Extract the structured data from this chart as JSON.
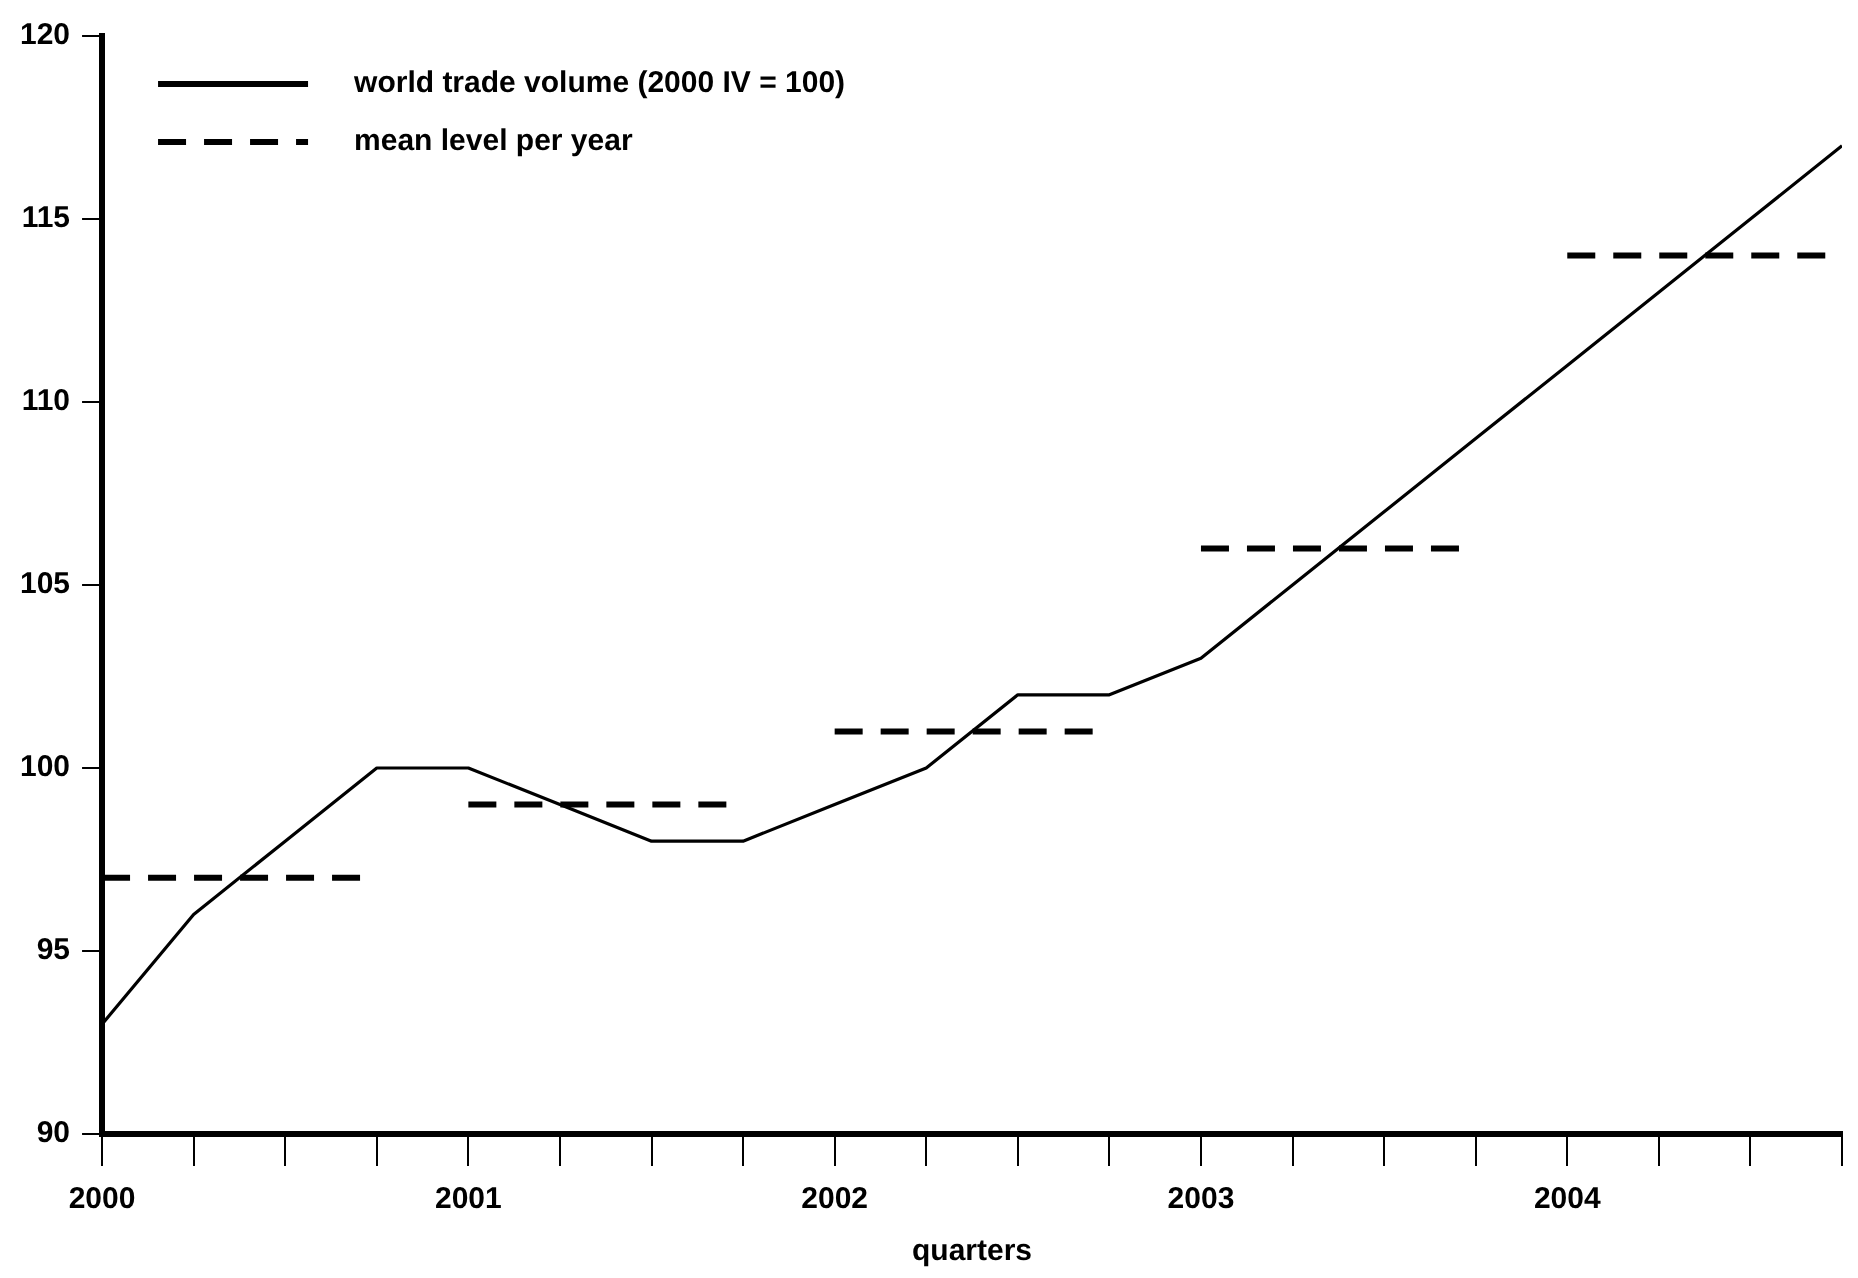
{
  "chart_data": {
    "type": "line",
    "xlabel": "quarters",
    "x": [
      2000,
      2000.25,
      2000.5,
      2000.75,
      2001,
      2001.25,
      2001.5,
      2001.75,
      2002,
      2002.25,
      2002.5,
      2002.75,
      2003,
      2003.25,
      2003.5,
      2003.75,
      2004,
      2004.25,
      2004.5,
      2004.75
    ],
    "series": [
      {
        "name": "world trade volume (2000 IV = 100)",
        "color": "#000000",
        "line_style": "solid",
        "values": [
          93,
          96,
          98,
          100,
          100,
          99,
          98,
          98,
          99,
          100,
          102,
          102,
          103,
          105,
          107,
          109,
          111,
          113,
          115,
          117
        ]
      },
      {
        "name": "mean level per year",
        "color": "#000000",
        "line_style": "dashed",
        "x": [
          2000,
          2000.75,
          2000.875,
          2001,
          2001.75,
          2001.875,
          2002,
          2002.75,
          2002.875,
          2003,
          2003.75,
          2003.875,
          2004,
          2004.75
        ],
        "values": [
          97,
          97,
          null,
          99,
          99,
          null,
          101,
          101,
          null,
          106,
          106,
          null,
          114,
          114
        ]
      }
    ],
    "xlim": [
      2000,
      2004.75
    ],
    "xticks": [
      2000,
      {
        "value": 2000.25,
        "label": null
      },
      {
        "value": 2000.5,
        "label": null
      },
      {
        "value": 2000.75,
        "label": null
      },
      2001,
      {
        "value": 2001.25,
        "label": null
      },
      {
        "value": 2001.5,
        "label": null
      },
      {
        "value": 2001.75,
        "label": null
      },
      2002,
      {
        "value": 2002.25,
        "label": null
      },
      {
        "value": 2002.5,
        "label": null
      },
      {
        "value": 2002.75,
        "label": null
      },
      2003,
      {
        "value": 2003.25,
        "label": null
      },
      {
        "value": 2003.5,
        "label": null
      },
      {
        "value": 2003.75,
        "label": null
      },
      2004,
      {
        "value": 2004.25,
        "label": null
      },
      {
        "value": 2004.5,
        "label": null
      },
      {
        "value": 2004.75,
        "label": null
      }
    ],
    "ylim": [
      90,
      120
    ],
    "yticks": [
      90,
      95,
      100,
      105,
      110,
      115,
      120
    ],
    "grid": false,
    "legend": "top left",
    "marker": "none"
  }
}
